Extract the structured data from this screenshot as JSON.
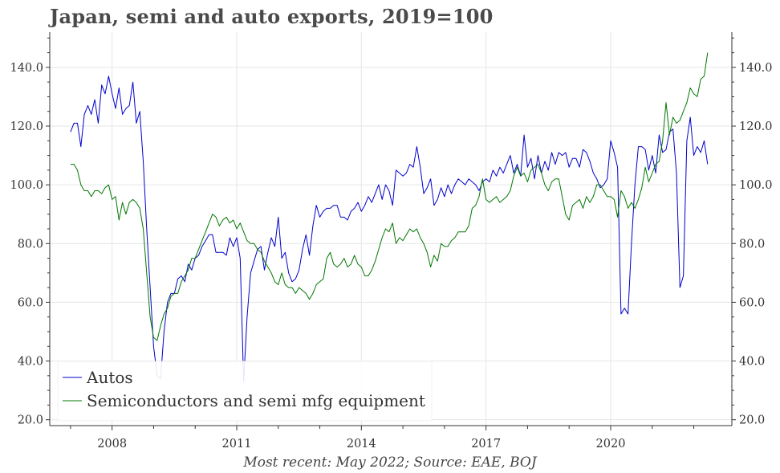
{
  "chart_data": {
    "type": "line",
    "title": "Japan, semi and auto exports, 2019=100",
    "note": "Most recent: May 2022; Source: EAE, BOJ",
    "xlabel": "",
    "ylabel": "",
    "x_start": "2007-01",
    "x_end": "2022-05",
    "xlim": [
      "2006-07",
      "2022-12"
    ],
    "ylim": [
      18,
      152
    ],
    "x_ticks": [
      "2008",
      "2011",
      "2014",
      "2017",
      "2020"
    ],
    "y_ticks": [
      "20.0",
      "40.0",
      "60.0",
      "80.0",
      "100.0",
      "120.0",
      "140.0"
    ],
    "grid": true,
    "legend_position": "bottom-left",
    "series": [
      {
        "name": "Autos",
        "color": "#0000cc",
        "values": [
          118,
          121,
          121,
          113,
          124,
          127,
          124,
          129,
          121,
          134,
          131,
          137,
          131,
          126,
          133,
          124,
          126,
          127,
          135,
          121,
          125,
          108,
          85,
          65,
          45,
          35,
          34,
          50,
          60,
          63,
          63,
          68,
          69,
          67,
          73,
          71,
          75,
          76,
          79,
          81,
          83,
          83,
          77,
          77,
          77,
          76,
          82,
          79,
          82,
          75,
          33,
          55,
          70,
          74,
          78,
          79,
          71,
          77,
          82,
          79,
          89,
          75,
          77,
          70,
          67,
          68,
          71,
          78,
          83,
          76,
          86,
          93,
          89,
          91,
          92,
          92,
          93,
          93,
          89,
          89,
          88,
          91,
          92,
          94,
          91,
          93,
          96,
          94,
          97,
          100,
          95,
          100,
          98,
          93,
          105,
          104,
          103,
          104,
          107,
          106,
          113,
          106,
          97,
          99,
          102,
          93,
          95,
          99,
          96,
          100,
          97,
          100,
          102,
          101,
          100,
          102,
          101,
          100,
          98,
          101,
          102,
          101,
          105,
          103,
          106,
          104,
          107,
          110,
          104,
          107,
          103,
          117,
          106,
          109,
          102,
          110,
          104,
          108,
          105,
          111,
          107,
          111,
          110,
          111,
          106,
          109,
          109,
          106,
          112,
          111,
          108,
          104,
          102,
          99,
          100,
          102,
          115,
          111,
          106,
          56,
          58,
          56,
          80,
          100,
          113,
          113,
          112,
          105,
          110,
          104,
          117,
          111,
          112,
          118,
          119,
          104,
          65,
          69,
          115,
          123,
          110,
          113,
          111,
          115,
          107
        ]
      },
      {
        "name": "Semiconductors and semi mfg equipment",
        "color": "#007700",
        "values": [
          107,
          107,
          105,
          100,
          98,
          98,
          96,
          98,
          98,
          97,
          99,
          100,
          95,
          96,
          88,
          94,
          90,
          94,
          95,
          94,
          92,
          85,
          70,
          55,
          48,
          47,
          52,
          56,
          58,
          62,
          63,
          63,
          67,
          69,
          71,
          75,
          75,
          78,
          81,
          84,
          87,
          90,
          89,
          86,
          88,
          89,
          87,
          88,
          85,
          87,
          84,
          81,
          80,
          80,
          78,
          77,
          74,
          72,
          70,
          67,
          66,
          70,
          66,
          65,
          65,
          63,
          65,
          64,
          63,
          61,
          63,
          66,
          67,
          68,
          75,
          77,
          73,
          72,
          73,
          75,
          72,
          73,
          76,
          73,
          72,
          69,
          69,
          71,
          74,
          78,
          82,
          85,
          84,
          87,
          80,
          82,
          81,
          83,
          85,
          84,
          85,
          82,
          80,
          77,
          72,
          76,
          74,
          80,
          79,
          79,
          81,
          82,
          84,
          84,
          84,
          86,
          92,
          93,
          96,
          102,
          95,
          94,
          95,
          96,
          94,
          95,
          96,
          98,
          103,
          106,
          103,
          104,
          101,
          105,
          106,
          107,
          104,
          100,
          98,
          101,
          102,
          102,
          96,
          90,
          88,
          93,
          94,
          95,
          92,
          96,
          94,
          96,
          100,
          100,
          98,
          96,
          96,
          95,
          89,
          98,
          96,
          92,
          94,
          92,
          95,
          99,
          106,
          101,
          104,
          107,
          108,
          115,
          128,
          117,
          123,
          121,
          122,
          125,
          128,
          133,
          131,
          130,
          136,
          137,
          145
        ]
      }
    ]
  }
}
